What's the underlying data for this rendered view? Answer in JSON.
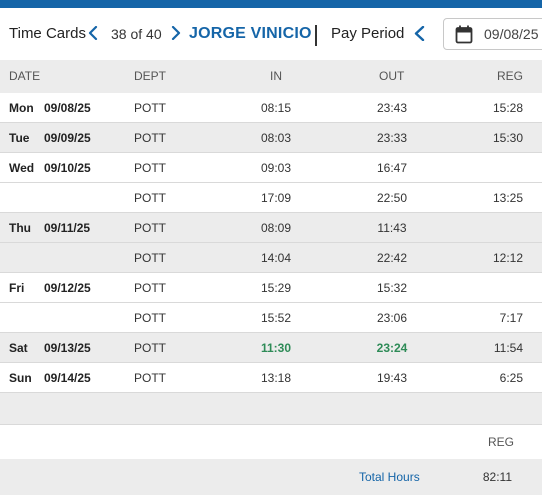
{
  "header": {
    "title": "Time Cards",
    "counter": "38 of 40",
    "employee_name": "JORGE VINICIO",
    "pay_period_label": "Pay Period",
    "pay_period_date": "09/08/25"
  },
  "columns": {
    "date": "DATE",
    "dept": "DEPT",
    "in": "IN",
    "out": "OUT",
    "reg": "REG"
  },
  "rows": [
    {
      "day": "Mon",
      "date": "09/08/25",
      "dept": "POTT",
      "in": "08:15",
      "out": "23:43",
      "reg": "15:28"
    },
    {
      "day": "Tue",
      "date": "09/09/25",
      "dept": "POTT",
      "in": "08:03",
      "out": "23:33",
      "reg": "15:30"
    },
    {
      "day": "Wed",
      "date": "09/10/25",
      "dept": "POTT",
      "in": "09:03",
      "out": "16:47",
      "reg": ""
    },
    {
      "day": "",
      "date": "",
      "dept": "POTT",
      "in": "17:09",
      "out": "22:50",
      "reg": "13:25"
    },
    {
      "day": "Thu",
      "date": "09/11/25",
      "dept": "POTT",
      "in": "08:09",
      "out": "11:43",
      "reg": ""
    },
    {
      "day": "",
      "date": "",
      "dept": "POTT",
      "in": "14:04",
      "out": "22:42",
      "reg": "12:12"
    },
    {
      "day": "Fri",
      "date": "09/12/25",
      "dept": "POTT",
      "in": "15:29",
      "out": "15:32",
      "reg": ""
    },
    {
      "day": "",
      "date": "",
      "dept": "POTT",
      "in": "15:52",
      "out": "23:06",
      "reg": "7:17"
    },
    {
      "day": "Sat",
      "date": "09/13/25",
      "dept": "POTT",
      "in": "11:30",
      "out": "23:24",
      "reg": "11:54"
    },
    {
      "day": "Sun",
      "date": "09/14/25",
      "dept": "POTT",
      "in": "13:18",
      "out": "19:43",
      "reg": "6:25"
    }
  ],
  "summary": {
    "reg_header": "REG",
    "total_label": "Total Hours",
    "total_value": "82:11"
  },
  "colors": {
    "accent": "#1565a8",
    "edited_time": "#2e8b57",
    "shade": "#ececec"
  },
  "icons": {
    "nav_prev": "chevron-left-icon",
    "nav_next": "chevron-right-icon",
    "calendar": "calendar-icon"
  }
}
